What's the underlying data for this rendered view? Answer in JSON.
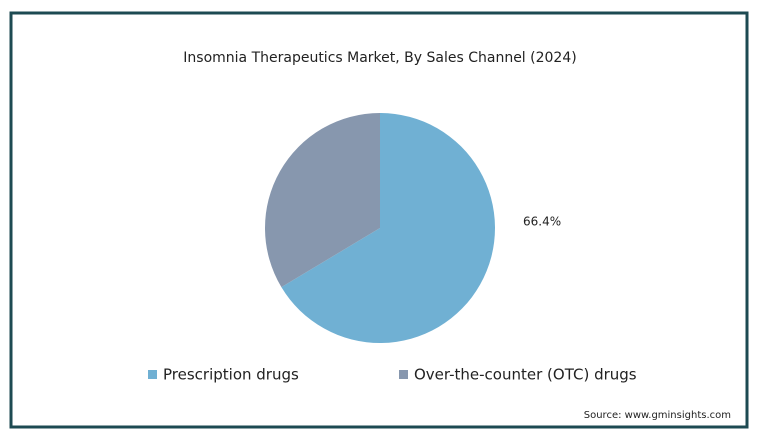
{
  "chart_data": {
    "type": "pie",
    "title": "Insomnia Therapeutics Market, By Sales Channel (2024)",
    "categories": [
      "Prescription drugs",
      "Over-the-counter (OTC) drugs"
    ],
    "values": [
      66.4,
      33.6
    ],
    "value_labels": [
      "66.4%",
      null
    ],
    "colors": [
      "#70b0d3",
      "#8797ae"
    ],
    "source": "Source: www.gminsights.com"
  }
}
